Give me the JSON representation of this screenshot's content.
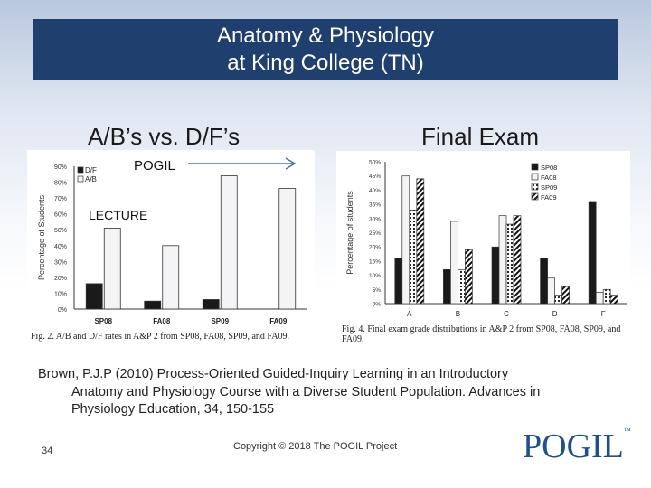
{
  "title": {
    "line1": "Anatomy & Physiology",
    "line2": "at King College (TN)"
  },
  "left_heading": "A/B’s vs. D/F’s",
  "right_heading": "Final Exam",
  "pogil_label": "POGIL",
  "lecture_label": "LECTURE",
  "citation": {
    "line1": "Brown, P.J.P (2010) Process-Oriented Guided-Inquiry Learning in an Introductory",
    "line2": "Anatomy and Physiology Course with a Diverse Student Population.  Advances in",
    "line3": "Physiology Education, 34, 150-155"
  },
  "page_number": "34",
  "copyright": "Copyright © 2018 The POGIL Project",
  "logo": {
    "text": "POGIL",
    "tm": "™"
  },
  "chart_data": [
    {
      "type": "bar",
      "ylabel": "Percentage of Students",
      "categories": [
        "SP08",
        "FA08",
        "SP09",
        "FA09"
      ],
      "series": [
        {
          "name": "D/F",
          "values": [
            16,
            5,
            6,
            null
          ]
        },
        {
          "name": "A/B",
          "values": [
            51,
            40,
            84,
            76
          ]
        }
      ],
      "ylim": [
        0,
        90
      ],
      "yticks": [
        "0%",
        "10%",
        "20%",
        "30%",
        "40%",
        "50%",
        "60%",
        "70%",
        "80%",
        "90%"
      ],
      "caption": "Fig. 2.  A/B and D/F rates in A&P 2 from SP08, FA08, SP09, and FA09."
    },
    {
      "type": "bar",
      "ylabel": "Percentage of students",
      "categories": [
        "A",
        "B",
        "C",
        "D",
        "F"
      ],
      "series": [
        {
          "name": "SP08",
          "values": [
            16,
            12,
            20,
            16,
            36
          ]
        },
        {
          "name": "FA08",
          "values": [
            45,
            29,
            31,
            9,
            4
          ]
        },
        {
          "name": "SP09",
          "values": [
            33,
            12,
            28,
            3,
            5
          ]
        },
        {
          "name": "FA09",
          "values": [
            44,
            19,
            31,
            6,
            3
          ]
        }
      ],
      "ylim": [
        0,
        50
      ],
      "yticks": [
        "0%",
        "5%",
        "10%",
        "15%",
        "20%",
        "25%",
        "30%",
        "35%",
        "40%",
        "45%",
        "50%"
      ],
      "caption": "Fig. 4.  Final exam grade distributions in A&P 2 from SP08, FA08, SP09, and FA09."
    }
  ]
}
